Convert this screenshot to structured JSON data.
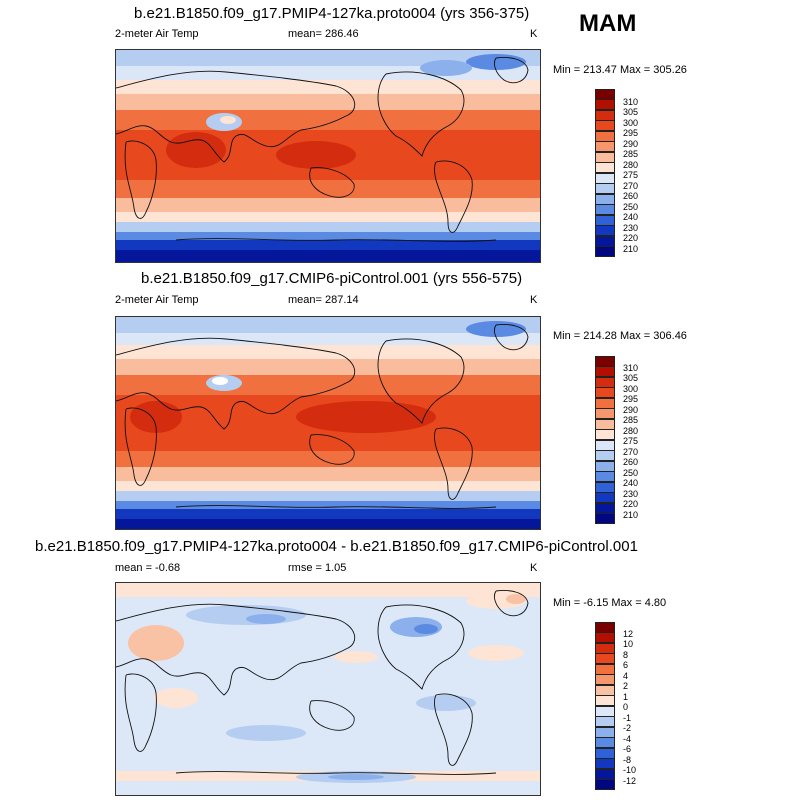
{
  "season": "MAM",
  "panels": [
    {
      "title": "b.e21.B1850.f09_g17.PMIP4-127ka.proto004 (yrs 356-375)",
      "left_label": "2-meter Air Temp",
      "center_label": "mean= 286.46",
      "units": "K",
      "minmax": "Min = 213.47 Max = 305.26",
      "colorbar_labels": [
        "310",
        "305",
        "300",
        "295",
        "290",
        "285",
        "280",
        "275",
        "270",
        "260",
        "250",
        "240",
        "230",
        "220",
        "210"
      ]
    },
    {
      "title": "b.e21.B1850.f09_g17.CMIP6-piControl.001 (yrs 556-575)",
      "left_label": "2-meter Air Temp",
      "center_label": "mean= 287.14",
      "units": "K",
      "minmax": "Min = 214.28 Max = 306.46",
      "colorbar_labels": [
        "310",
        "305",
        "300",
        "295",
        "290",
        "285",
        "280",
        "275",
        "270",
        "260",
        "250",
        "240",
        "230",
        "220",
        "210"
      ]
    },
    {
      "title": "b.e21.B1850.f09_g17.PMIP4-127ka.proto004 - b.e21.B1850.f09_g17.CMIP6-piControl.001",
      "left_label": "mean =  -0.68",
      "center_label": "rmse =   1.05",
      "units": "K",
      "minmax": "Min =  -6.15 Max =   4.80",
      "colorbar_labels": [
        "12",
        "10",
        "8",
        "6",
        "4",
        "2",
        "1",
        "0",
        "-1",
        "-2",
        "-4",
        "-6",
        "-8",
        "-10",
        "-12"
      ]
    }
  ],
  "colors": {
    "abs_scale": [
      "#7a0000",
      "#b30f00",
      "#d42c0e",
      "#e8481d",
      "#f07040",
      "#f5966c",
      "#f9bc9c",
      "#fde4d4",
      "#dbe6f7",
      "#b6cdf2",
      "#8cb0ec",
      "#5b8ae3",
      "#2f62d6",
      "#1238c0",
      "#04169a",
      "#000780"
    ],
    "diff_scale": [
      "#7a0000",
      "#b30f00",
      "#d42c0e",
      "#e8481d",
      "#f07040",
      "#f5966c",
      "#f9c2a4",
      "#fde4d4",
      "#dce8f8",
      "#b6cdf2",
      "#8cb0ec",
      "#5b8ae3",
      "#2f62d6",
      "#1238c0",
      "#04169a",
      "#000780"
    ]
  }
}
